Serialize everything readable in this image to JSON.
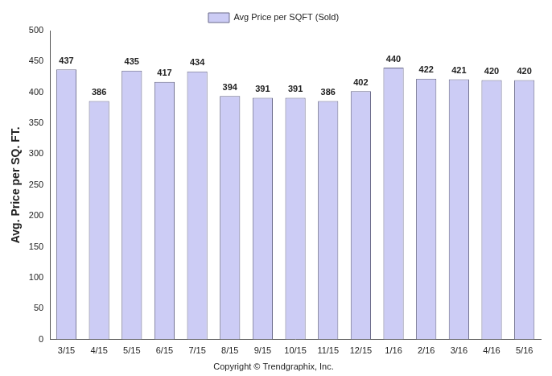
{
  "chart_data": {
    "type": "bar",
    "ylabel": "Avg. Price per SQ. FT.",
    "categories": [
      "3/15",
      "4/15",
      "5/15",
      "6/15",
      "7/15",
      "8/15",
      "9/15",
      "10/15",
      "11/15",
      "12/15",
      "1/16",
      "2/16",
      "3/16",
      "4/16",
      "5/16"
    ],
    "series": [
      {
        "name": "Avg Price per SQFT (Sold)",
        "color": "#ccccf5",
        "values": [
          437,
          386,
          435,
          417,
          434,
          394,
          391,
          391,
          386,
          402,
          440,
          422,
          421,
          420,
          420
        ]
      }
    ],
    "ylim": [
      0,
      500
    ],
    "yticks": [
      0,
      50,
      100,
      150,
      200,
      250,
      300,
      350,
      400,
      450,
      500
    ],
    "grid": false,
    "legend": "top",
    "data_labels": true,
    "annotations": [
      "Copyright © Trendgraphix, Inc."
    ]
  }
}
